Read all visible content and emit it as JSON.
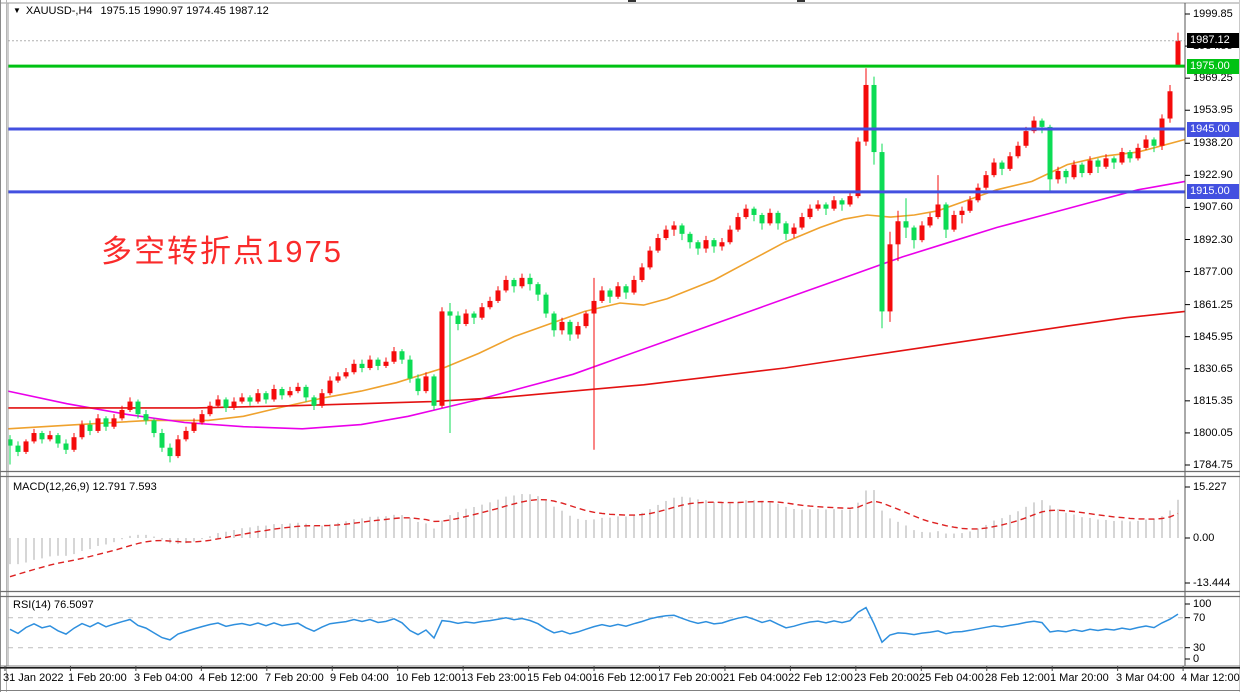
{
  "colors": {
    "up": "#f40b0b",
    "down": "#0cdc55",
    "ma_fast": "#efa22e",
    "ma_mid": "#ea00ea",
    "ma_slow": "#e31212",
    "hline_green": "#00c213",
    "hline_blue": "#4350e0",
    "price_line": "#b0b0b0",
    "price_tag_bg": "#000000",
    "macd_bar": "#cccccc",
    "macd_signal": "#dd2222",
    "rsi_line": "#2e8fde",
    "level_dash": "#c6c6c6",
    "border": "#9b9b9b",
    "text": "#000000",
    "annotation": "#fa2b2b"
  },
  "chart_data": {
    "type": "candlestick",
    "title": {
      "dropdown_icon": "▼",
      "symbol_period": "XAUUSD-,H4",
      "ohlc": "1975.15 1990.97 1974.45 1987.12"
    },
    "annotation": {
      "text": "多空转折点1975"
    },
    "y_axis": {
      "ticks": [
        "1999.85",
        "1984.55",
        "1969.25",
        "1953.95",
        "1938.20",
        "1922.90",
        "1907.60",
        "1892.30",
        "1877.00",
        "1861.25",
        "1845.95",
        "1830.65",
        "1815.35",
        "1800.05",
        "1784.75"
      ]
    },
    "hlines": [
      {
        "price": 1975.0,
        "label": "1975.00",
        "color_key": "hline_green"
      },
      {
        "price": 1945.0,
        "label": "1945.00",
        "color_key": "hline_blue"
      },
      {
        "price": 1915.0,
        "label": "1915.00",
        "color_key": "hline_blue"
      }
    ],
    "current_price": {
      "price": 1987.12,
      "label": "1987.12"
    },
    "candles": [
      [
        1797,
        1799,
        1785,
        1794
      ],
      [
        1794,
        1796,
        1789,
        1791
      ],
      [
        1791,
        1797,
        1790,
        1796
      ],
      [
        1796,
        1802,
        1795,
        1800
      ],
      [
        1800,
        1801,
        1795,
        1797
      ],
      [
        1797,
        1801,
        1796,
        1799
      ],
      [
        1799,
        1800,
        1793,
        1795
      ],
      [
        1795,
        1797,
        1790,
        1792
      ],
      [
        1792,
        1800,
        1791,
        1798
      ],
      [
        1798,
        1806,
        1797,
        1804
      ],
      [
        1804,
        1806,
        1799,
        1801
      ],
      [
        1801,
        1809,
        1800,
        1807
      ],
      [
        1807,
        1808,
        1801,
        1803
      ],
      [
        1803,
        1809,
        1802,
        1807
      ],
      [
        1807,
        1813,
        1806,
        1811
      ],
      [
        1811,
        1817,
        1810,
        1815
      ],
      [
        1815,
        1816,
        1807,
        1809
      ],
      [
        1809,
        1811,
        1804,
        1806
      ],
      [
        1806,
        1807,
        1798,
        1800
      ],
      [
        1800,
        1802,
        1791,
        1793
      ],
      [
        1793,
        1795,
        1786,
        1789
      ],
      [
        1789,
        1799,
        1788,
        1797
      ],
      [
        1797,
        1803,
        1796,
        1801
      ],
      [
        1801,
        1807,
        1800,
        1805
      ],
      [
        1805,
        1811,
        1804,
        1809
      ],
      [
        1809,
        1815,
        1808,
        1813
      ],
      [
        1813,
        1818,
        1812,
        1816
      ],
      [
        1816,
        1817,
        1810,
        1812
      ],
      [
        1812,
        1817,
        1811,
        1815
      ],
      [
        1815,
        1819,
        1814,
        1817
      ],
      [
        1817,
        1818,
        1813,
        1815
      ],
      [
        1815,
        1821,
        1814,
        1819
      ],
      [
        1819,
        1820,
        1814,
        1816
      ],
      [
        1816,
        1823,
        1815,
        1821
      ],
      [
        1821,
        1822,
        1816,
        1818
      ],
      [
        1818,
        1822,
        1817,
        1820
      ],
      [
        1820,
        1824,
        1819,
        1822
      ],
      [
        1822,
        1823,
        1815,
        1817
      ],
      [
        1817,
        1818,
        1811,
        1813
      ],
      [
        1813,
        1821,
        1812,
        1819
      ],
      [
        1819,
        1827,
        1818,
        1825
      ],
      [
        1825,
        1829,
        1824,
        1827
      ],
      [
        1827,
        1831,
        1826,
        1829
      ],
      [
        1829,
        1835,
        1828,
        1833
      ],
      [
        1833,
        1835,
        1829,
        1831
      ],
      [
        1831,
        1837,
        1830,
        1835
      ],
      [
        1835,
        1836,
        1830,
        1832
      ],
      [
        1832,
        1836,
        1831,
        1834
      ],
      [
        1834,
        1841,
        1833,
        1839
      ],
      [
        1839,
        1840,
        1833,
        1835
      ],
      [
        1835,
        1837,
        1824,
        1826
      ],
      [
        1826,
        1828,
        1818,
        1820
      ],
      [
        1820,
        1829,
        1819,
        1827
      ],
      [
        1827,
        1828,
        1811,
        1813
      ],
      [
        1813,
        1860,
        1812,
        1858
      ],
      [
        1858,
        1862,
        1800,
        1856
      ],
      [
        1856,
        1858,
        1849,
        1852
      ],
      [
        1852,
        1859,
        1851,
        1857
      ],
      [
        1857,
        1858,
        1852,
        1855
      ],
      [
        1855,
        1862,
        1854,
        1860
      ],
      [
        1860,
        1865,
        1859,
        1863
      ],
      [
        1863,
        1870,
        1862,
        1868
      ],
      [
        1868,
        1875,
        1867,
        1873
      ],
      [
        1873,
        1874,
        1867,
        1870
      ],
      [
        1870,
        1876,
        1869,
        1874
      ],
      [
        1874,
        1876,
        1868,
        1871
      ],
      [
        1871,
        1872,
        1863,
        1866
      ],
      [
        1866,
        1867,
        1855,
        1857
      ],
      [
        1857,
        1858,
        1846,
        1849
      ],
      [
        1849,
        1855,
        1847,
        1853
      ],
      [
        1853,
        1854,
        1844,
        1847
      ],
      [
        1847,
        1853,
        1845,
        1851
      ],
      [
        1851,
        1858,
        1850,
        1857
      ],
      [
        1857,
        1874,
        1792,
        1863
      ],
      [
        1863,
        1870,
        1862,
        1868
      ],
      [
        1868,
        1869,
        1862,
        1865
      ],
      [
        1865,
        1872,
        1864,
        1870
      ],
      [
        1870,
        1871,
        1864,
        1867
      ],
      [
        1867,
        1875,
        1866,
        1873
      ],
      [
        1873,
        1881,
        1872,
        1879
      ],
      [
        1879,
        1889,
        1878,
        1887
      ],
      [
        1887,
        1895,
        1886,
        1893
      ],
      [
        1893,
        1899,
        1892,
        1897
      ],
      [
        1897,
        1901,
        1894,
        1899
      ],
      [
        1899,
        1900,
        1892,
        1895
      ],
      [
        1895,
        1896,
        1888,
        1891
      ],
      [
        1891,
        1892,
        1885,
        1888
      ],
      [
        1888,
        1894,
        1886,
        1892
      ],
      [
        1892,
        1893,
        1886,
        1889
      ],
      [
        1889,
        1893,
        1887,
        1891
      ],
      [
        1891,
        1899,
        1890,
        1897
      ],
      [
        1897,
        1905,
        1896,
        1903
      ],
      [
        1903,
        1909,
        1902,
        1907
      ],
      [
        1907,
        1908,
        1901,
        1904
      ],
      [
        1904,
        1905,
        1897,
        1900
      ],
      [
        1900,
        1907,
        1899,
        1905
      ],
      [
        1905,
        1906,
        1897,
        1900
      ],
      [
        1900,
        1901,
        1892,
        1895
      ],
      [
        1895,
        1900,
        1893,
        1898
      ],
      [
        1898,
        1905,
        1897,
        1903
      ],
      [
        1903,
        1909,
        1902,
        1907
      ],
      [
        1907,
        1911,
        1906,
        1909
      ],
      [
        1909,
        1910,
        1904,
        1907
      ],
      [
        1907,
        1913,
        1906,
        1911
      ],
      [
        1911,
        1912,
        1906,
        1909
      ],
      [
        1909,
        1915,
        1908,
        1913
      ],
      [
        1913,
        1941,
        1912,
        1939
      ],
      [
        1939,
        1974,
        1937,
        1966
      ],
      [
        1966,
        1970,
        1928,
        1934
      ],
      [
        1934,
        1938,
        1850,
        1858
      ],
      [
        1858,
        1896,
        1853,
        1890
      ],
      [
        1890,
        1906,
        1882,
        1901
      ],
      [
        1901,
        1912,
        1893,
        1898
      ],
      [
        1898,
        1899,
        1888,
        1892
      ],
      [
        1892,
        1901,
        1891,
        1899
      ],
      [
        1899,
        1905,
        1898,
        1903
      ],
      [
        1903,
        1923,
        1902,
        1909
      ],
      [
        1909,
        1910,
        1893,
        1897
      ],
      [
        1897,
        1906,
        1896,
        1904
      ],
      [
        1904,
        1908,
        1900,
        1906
      ],
      [
        1906,
        1913,
        1905,
        1911
      ],
      [
        1911,
        1919,
        1910,
        1917
      ],
      [
        1917,
        1925,
        1916,
        1923
      ],
      [
        1923,
        1931,
        1922,
        1929
      ],
      [
        1929,
        1930,
        1923,
        1926
      ],
      [
        1926,
        1934,
        1925,
        1932
      ],
      [
        1932,
        1939,
        1931,
        1937
      ],
      [
        1937,
        1946,
        1936,
        1944
      ],
      [
        1944,
        1951,
        1943,
        1949
      ],
      [
        1949,
        1950,
        1943,
        1946
      ],
      [
        1946,
        1947,
        1915,
        1921
      ],
      [
        1921,
        1927,
        1919,
        1925
      ],
      [
        1925,
        1926,
        1919,
        1922
      ],
      [
        1922,
        1930,
        1921,
        1928
      ],
      [
        1928,
        1929,
        1922,
        1924
      ],
      [
        1924,
        1932,
        1923,
        1930
      ],
      [
        1930,
        1931,
        1924,
        1927
      ],
      [
        1927,
        1933,
        1926,
        1931
      ],
      [
        1931,
        1932,
        1926,
        1929
      ],
      [
        1929,
        1936,
        1928,
        1934
      ],
      [
        1934,
        1935,
        1929,
        1931
      ],
      [
        1931,
        1938,
        1930,
        1936
      ],
      [
        1936,
        1942,
        1935,
        1940
      ],
      [
        1940,
        1941,
        1934,
        1937
      ],
      [
        1937,
        1952,
        1935,
        1950
      ],
      [
        1950,
        1966,
        1948,
        1963
      ],
      [
        1975.15,
        1990.97,
        1974.45,
        1987.12
      ]
    ],
    "moving_averages": [
      {
        "name": "fast",
        "color_key": "ma_fast",
        "points": [
          [
            0,
            1802
          ],
          [
            0.06,
            1804
          ],
          [
            0.12,
            1806
          ],
          [
            0.17,
            1806
          ],
          [
            0.2,
            1808
          ],
          [
            0.23,
            1812
          ],
          [
            0.27,
            1817
          ],
          [
            0.3,
            1820
          ],
          [
            0.33,
            1824
          ],
          [
            0.37,
            1831
          ],
          [
            0.4,
            1838
          ],
          [
            0.43,
            1846
          ],
          [
            0.46,
            1852
          ],
          [
            0.49,
            1858
          ],
          [
            0.52,
            1862
          ],
          [
            0.54,
            1861
          ],
          [
            0.56,
            1864
          ],
          [
            0.6,
            1873
          ],
          [
            0.63,
            1882
          ],
          [
            0.66,
            1891
          ],
          [
            0.69,
            1898
          ],
          [
            0.71,
            1902
          ],
          [
            0.73,
            1904
          ],
          [
            0.75,
            1903
          ],
          [
            0.77,
            1904
          ],
          [
            0.79,
            1906
          ],
          [
            0.81,
            1910
          ],
          [
            0.84,
            1916
          ],
          [
            0.87,
            1920
          ],
          [
            0.9,
            1928
          ],
          [
            0.93,
            1932
          ],
          [
            0.96,
            1934
          ],
          [
            1,
            1940
          ]
        ]
      },
      {
        "name": "mid",
        "color_key": "ma_mid",
        "points": [
          [
            0,
            1820
          ],
          [
            0.05,
            1814
          ],
          [
            0.1,
            1809
          ],
          [
            0.15,
            1805
          ],
          [
            0.2,
            1803
          ],
          [
            0.25,
            1802
          ],
          [
            0.3,
            1804
          ],
          [
            0.34,
            1808
          ],
          [
            0.37,
            1812
          ],
          [
            0.4,
            1816
          ],
          [
            0.44,
            1822
          ],
          [
            0.48,
            1828
          ],
          [
            0.52,
            1836
          ],
          [
            0.56,
            1844
          ],
          [
            0.6,
            1852
          ],
          [
            0.64,
            1860
          ],
          [
            0.68,
            1868
          ],
          [
            0.72,
            1876
          ],
          [
            0.76,
            1884
          ],
          [
            0.8,
            1891
          ],
          [
            0.84,
            1898
          ],
          [
            0.88,
            1904
          ],
          [
            0.92,
            1910
          ],
          [
            0.96,
            1916
          ],
          [
            1,
            1920
          ]
        ]
      },
      {
        "name": "slow",
        "color_key": "ma_slow",
        "points": [
          [
            0,
            1812
          ],
          [
            0.08,
            1812
          ],
          [
            0.16,
            1812
          ],
          [
            0.24,
            1813
          ],
          [
            0.3,
            1814
          ],
          [
            0.36,
            1815
          ],
          [
            0.42,
            1817
          ],
          [
            0.48,
            1820
          ],
          [
            0.54,
            1823
          ],
          [
            0.6,
            1827
          ],
          [
            0.66,
            1831
          ],
          [
            0.72,
            1836
          ],
          [
            0.78,
            1841
          ],
          [
            0.84,
            1846
          ],
          [
            0.9,
            1851
          ],
          [
            0.95,
            1855
          ],
          [
            1,
            1858
          ]
        ]
      }
    ],
    "macd": {
      "label": "MACD(12,26,9) 12.791 7.593",
      "params": [
        12,
        26,
        9
      ],
      "main_value": 12.791,
      "signal_value": 7.593,
      "axis": [
        "15.227",
        "0.00",
        "-13.444"
      ],
      "axis_values": [
        15.227,
        0,
        -13.444
      ],
      "seed": {
        "ema_fast": 1799,
        "ema_slow": 1807,
        "signal": -12.5
      }
    },
    "rsi": {
      "label": "RSI(14) 76.5097",
      "period": 14,
      "value": 76.5097,
      "axis": [
        "100",
        "70",
        "30",
        "0"
      ],
      "axis_values": [
        100,
        70,
        30,
        0
      ],
      "levels": [
        70,
        30
      ],
      "seed": {
        "avg_gain": 1.2,
        "avg_loss": 1.0
      }
    },
    "x_axis": {
      "labels": [
        "31 Jan 2022",
        "1 Feb 20:00",
        "3 Feb 04:00",
        "4 Feb 12:00",
        "7 Feb 20:00",
        "9 Feb 04:00",
        "10 Feb 12:00",
        "13 Feb 23:00",
        "15 Feb 04:00",
        "16 Feb 12:00",
        "17 Feb 20:00",
        "21 Feb 04:00",
        "22 Feb 12:00",
        "23 Feb 20:00",
        "25 Feb 04:00",
        "28 Feb 12:00",
        "1 Mar 20:00",
        "3 Mar 04:00",
        "4 Mar 12:00"
      ]
    }
  }
}
